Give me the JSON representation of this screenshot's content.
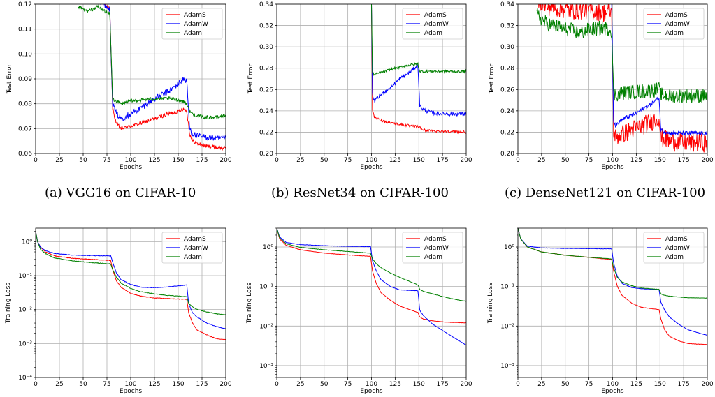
{
  "figure": {
    "captions": [
      "(a)  VGG16 on CIFAR-10",
      "(b)  ResNet34 on CIFAR-100",
      "(c)  DenseNet121 on CIFAR-100"
    ]
  },
  "chart_data": [
    {
      "id": "a-test",
      "type": "line",
      "title": "",
      "xlabel": "Epochs",
      "ylabel": "Test Error",
      "yscale": "linear",
      "xlim": [
        0,
        200
      ],
      "ylim": [
        0.06,
        0.12
      ],
      "xticks": [
        0,
        25,
        50,
        75,
        100,
        125,
        150,
        175,
        200
      ],
      "yticks": [
        0.06,
        0.07,
        0.08,
        0.09,
        0.1,
        0.11,
        0.12
      ],
      "yticklabels": [
        "0.06",
        "0.07",
        "0.08",
        "0.09",
        "0.10",
        "0.11",
        "0.12"
      ],
      "grid": true,
      "legend": "top-right",
      "series": [
        {
          "name": "AdamS",
          "color": "#ff0000",
          "x": [
            45,
            55,
            65,
            78,
            81,
            85,
            90,
            100,
            110,
            125,
            140,
            150,
            155,
            159,
            162,
            165,
            170,
            180,
            190,
            200
          ],
          "y": [
            0.125,
            0.124,
            0.122,
            0.118,
            0.078,
            0.072,
            0.07,
            0.071,
            0.072,
            0.074,
            0.076,
            0.077,
            0.078,
            0.077,
            0.068,
            0.065,
            0.064,
            0.063,
            0.0625,
            0.062
          ],
          "noise": 0.0008
        },
        {
          "name": "AdamW",
          "color": "#0000ff",
          "x": [
            45,
            55,
            65,
            78,
            81,
            85,
            90,
            100,
            110,
            125,
            140,
            150,
            155,
            159,
            162,
            165,
            170,
            180,
            190,
            200
          ],
          "y": [
            0.125,
            0.124,
            0.122,
            0.118,
            0.08,
            0.076,
            0.074,
            0.076,
            0.078,
            0.082,
            0.085,
            0.088,
            0.09,
            0.089,
            0.07,
            0.068,
            0.067,
            0.0665,
            0.066,
            0.066
          ],
          "noise": 0.0012
        },
        {
          "name": "Adam",
          "color": "#008000",
          "x": [
            45,
            55,
            65,
            78,
            81,
            85,
            90,
            100,
            110,
            125,
            140,
            150,
            155,
            159,
            162,
            165,
            170,
            180,
            190,
            200
          ],
          "y": [
            0.119,
            0.117,
            0.119,
            0.116,
            0.082,
            0.081,
            0.08,
            0.081,
            0.0815,
            0.082,
            0.082,
            0.0815,
            0.081,
            0.08,
            0.077,
            0.076,
            0.075,
            0.0745,
            0.0745,
            0.0755
          ],
          "noise": 0.0007
        }
      ]
    },
    {
      "id": "b-test",
      "type": "line",
      "title": "",
      "xlabel": "Epochs",
      "ylabel": "Test Error",
      "yscale": "linear",
      "xlim": [
        0,
        200
      ],
      "ylim": [
        0.2,
        0.34
      ],
      "xticks": [
        0,
        25,
        50,
        75,
        100,
        125,
        150,
        175,
        200
      ],
      "yticks": [
        0.2,
        0.22,
        0.24,
        0.26,
        0.28,
        0.3,
        0.32,
        0.34
      ],
      "yticklabels": [
        "0.20",
        "0.22",
        "0.24",
        "0.26",
        "0.28",
        "0.30",
        "0.32",
        "0.34"
      ],
      "grid": true,
      "legend": "top-right",
      "series": [
        {
          "name": "AdamS",
          "color": "#ff0000",
          "x": [
            100,
            101,
            103,
            110,
            125,
            140,
            150,
            155,
            165,
            180,
            200
          ],
          "y": [
            0.34,
            0.24,
            0.234,
            0.231,
            0.228,
            0.226,
            0.225,
            0.222,
            0.221,
            0.221,
            0.22
          ],
          "noise": 0.0012
        },
        {
          "name": "AdamW",
          "color": "#0000ff",
          "x": [
            100,
            101,
            103,
            110,
            120,
            130,
            140,
            149,
            151,
            155,
            165,
            180,
            200
          ],
          "y": [
            0.34,
            0.255,
            0.249,
            0.255,
            0.262,
            0.27,
            0.276,
            0.283,
            0.245,
            0.241,
            0.238,
            0.237,
            0.237
          ],
          "noise": 0.0018
        },
        {
          "name": "Adam",
          "color": "#008000",
          "x": [
            100,
            101,
            103,
            110,
            125,
            140,
            149,
            151,
            160,
            180,
            200
          ],
          "y": [
            0.34,
            0.276,
            0.274,
            0.276,
            0.28,
            0.283,
            0.284,
            0.277,
            0.277,
            0.277,
            0.277
          ],
          "noise": 0.0012
        }
      ]
    },
    {
      "id": "c-test",
      "type": "line",
      "title": "",
      "xlabel": "Epochs",
      "ylabel": "Test Error",
      "yscale": "linear",
      "xlim": [
        0,
        200
      ],
      "ylim": [
        0.2,
        0.34
      ],
      "xticks": [
        0,
        25,
        50,
        75,
        100,
        125,
        150,
        175,
        200
      ],
      "yticks": [
        0.2,
        0.22,
        0.24,
        0.26,
        0.28,
        0.3,
        0.32,
        0.34
      ],
      "yticklabels": [
        "0.20",
        "0.22",
        "0.24",
        "0.26",
        "0.28",
        "0.30",
        "0.32",
        "0.34"
      ],
      "grid": true,
      "legend": "top-right",
      "series": [
        {
          "name": "AdamS",
          "color": "#ff0000",
          "x": [
            20,
            30,
            45,
            60,
            75,
            90,
            99,
            101,
            103,
            110,
            125,
            140,
            149,
            151,
            160,
            180,
            200
          ],
          "y": [
            0.345,
            0.338,
            0.336,
            0.334,
            0.335,
            0.332,
            0.333,
            0.222,
            0.215,
            0.218,
            0.224,
            0.229,
            0.234,
            0.215,
            0.212,
            0.21,
            0.21
          ],
          "noise": 0.009
        },
        {
          "name": "AdamW",
          "color": "#0000ff",
          "x": [
            20,
            40,
            70,
            99,
            101,
            103,
            110,
            125,
            140,
            149,
            151,
            160,
            180,
            200
          ],
          "y": [
            0.345,
            0.345,
            0.345,
            0.345,
            0.23,
            0.226,
            0.232,
            0.238,
            0.246,
            0.252,
            0.222,
            0.219,
            0.219,
            0.219
          ],
          "noise": 0.002
        },
        {
          "name": "Adam",
          "color": "#008000",
          "x": [
            20,
            30,
            45,
            55,
            65,
            75,
            90,
            99,
            101,
            103,
            110,
            125,
            140,
            149,
            151,
            160,
            180,
            200
          ],
          "y": [
            0.33,
            0.322,
            0.318,
            0.316,
            0.313,
            0.316,
            0.318,
            0.316,
            0.255,
            0.255,
            0.257,
            0.258,
            0.259,
            0.26,
            0.255,
            0.254,
            0.254,
            0.254
          ],
          "noise": 0.007
        }
      ]
    },
    {
      "id": "a-train",
      "type": "line",
      "title": "",
      "xlabel": "Epochs",
      "ylabel": "Training Loss",
      "yscale": "log",
      "xlim": [
        0,
        200
      ],
      "ylim": [
        0.0001,
        2.5
      ],
      "xticks": [
        0,
        25,
        50,
        75,
        100,
        125,
        150,
        175,
        200
      ],
      "yticks": [
        0.0001,
        0.001,
        0.01,
        0.1,
        1
      ],
      "yticklabels": [
        "10⁻⁴",
        "10⁻³",
        "10⁻²",
        "10⁻¹",
        "10⁰"
      ],
      "grid": true,
      "legend": "top-right",
      "series": [
        {
          "name": "AdamS",
          "color": "#ff0000",
          "x": [
            0,
            2,
            5,
            10,
            20,
            40,
            60,
            79,
            81,
            85,
            90,
            100,
            110,
            125,
            140,
            159,
            161,
            165,
            170,
            180,
            190,
            200
          ],
          "y": [
            2.0,
            1.0,
            0.7,
            0.5,
            0.38,
            0.32,
            0.3,
            0.28,
            0.15,
            0.07,
            0.045,
            0.03,
            0.025,
            0.022,
            0.021,
            0.02,
            0.008,
            0.004,
            0.0025,
            0.0018,
            0.0014,
            0.0013
          ],
          "noise": 0.02
        },
        {
          "name": "AdamW",
          "color": "#0000ff",
          "x": [
            0,
            2,
            5,
            10,
            20,
            40,
            60,
            79,
            81,
            85,
            90,
            100,
            110,
            125,
            140,
            159,
            161,
            165,
            170,
            180,
            190,
            200
          ],
          "y": [
            2.0,
            1.0,
            0.7,
            0.55,
            0.45,
            0.4,
            0.39,
            0.38,
            0.25,
            0.12,
            0.075,
            0.055,
            0.046,
            0.044,
            0.047,
            0.053,
            0.015,
            0.008,
            0.006,
            0.004,
            0.0032,
            0.0027
          ],
          "noise": 0.02
        },
        {
          "name": "Adam",
          "color": "#008000",
          "x": [
            0,
            2,
            5,
            10,
            20,
            40,
            60,
            79,
            81,
            85,
            90,
            100,
            110,
            125,
            140,
            159,
            161,
            165,
            170,
            180,
            190,
            200
          ],
          "y": [
            2.0,
            1.0,
            0.6,
            0.45,
            0.33,
            0.27,
            0.24,
            0.22,
            0.15,
            0.09,
            0.06,
            0.042,
            0.034,
            0.029,
            0.026,
            0.024,
            0.015,
            0.012,
            0.01,
            0.0085,
            0.0075,
            0.007
          ],
          "noise": 0.02
        }
      ]
    },
    {
      "id": "b-train",
      "type": "line",
      "title": "",
      "xlabel": "Epochs",
      "ylabel": "Training Loss",
      "yscale": "log",
      "xlim": [
        0,
        200
      ],
      "ylim": [
        0.0005,
        3
      ],
      "xticks": [
        0,
        25,
        50,
        75,
        100,
        125,
        150,
        175,
        200
      ],
      "yticks": [
        0.001,
        0.01,
        0.1,
        1
      ],
      "yticklabels": [
        "10⁻³",
        "10⁻²",
        "10⁻¹",
        "10⁰"
      ],
      "grid": true,
      "legend": "top-right",
      "series": [
        {
          "name": "AdamS",
          "color": "#ff0000",
          "x": [
            0,
            3,
            10,
            25,
            50,
            75,
            99,
            101,
            105,
            110,
            120,
            130,
            149,
            151,
            155,
            165,
            180,
            200
          ],
          "y": [
            3.0,
            1.6,
            1.1,
            0.85,
            0.7,
            0.63,
            0.58,
            0.25,
            0.12,
            0.07,
            0.045,
            0.032,
            0.022,
            0.017,
            0.015,
            0.0135,
            0.0125,
            0.012
          ],
          "noise": 0.01
        },
        {
          "name": "AdamW",
          "color": "#0000ff",
          "x": [
            0,
            3,
            10,
            25,
            50,
            75,
            99,
            101,
            105,
            110,
            120,
            130,
            149,
            151,
            155,
            165,
            180,
            200
          ],
          "y": [
            3.0,
            1.8,
            1.3,
            1.15,
            1.08,
            1.04,
            1.02,
            0.45,
            0.25,
            0.15,
            0.1,
            0.082,
            0.078,
            0.025,
            0.018,
            0.011,
            0.0065,
            0.0033
          ],
          "noise": 0.01
        },
        {
          "name": "Adam",
          "color": "#008000",
          "x": [
            0,
            3,
            10,
            25,
            50,
            75,
            99,
            101,
            105,
            110,
            120,
            130,
            149,
            151,
            155,
            165,
            180,
            200
          ],
          "y": [
            3.0,
            1.7,
            1.2,
            0.98,
            0.85,
            0.77,
            0.7,
            0.5,
            0.38,
            0.3,
            0.22,
            0.17,
            0.11,
            0.085,
            0.075,
            0.065,
            0.052,
            0.042
          ],
          "noise": 0.01
        }
      ]
    },
    {
      "id": "c-train",
      "type": "line",
      "title": "",
      "xlabel": "Epochs",
      "ylabel": "Training Loss",
      "yscale": "log",
      "xlim": [
        0,
        200
      ],
      "ylim": [
        0.0005,
        3
      ],
      "xticks": [
        0,
        25,
        50,
        75,
        100,
        125,
        150,
        175,
        200
      ],
      "yticks": [
        0.001,
        0.01,
        0.1,
        1
      ],
      "yticklabels": [
        "10⁻³",
        "10⁻²",
        "10⁻¹",
        "10⁰"
      ],
      "grid": true,
      "legend": "top-right",
      "series": [
        {
          "name": "AdamS",
          "color": "#ff0000",
          "x": [
            0,
            3,
            10,
            25,
            50,
            75,
            99,
            101,
            105,
            110,
            120,
            130,
            149,
            151,
            155,
            160,
            170,
            180,
            200
          ],
          "y": [
            3.0,
            1.6,
            1.0,
            0.75,
            0.62,
            0.55,
            0.48,
            0.25,
            0.1,
            0.06,
            0.038,
            0.03,
            0.026,
            0.015,
            0.008,
            0.0055,
            0.0042,
            0.0036,
            0.0034
          ],
          "noise": 0.01
        },
        {
          "name": "AdamW",
          "color": "#0000ff",
          "x": [
            0,
            3,
            10,
            25,
            50,
            75,
            99,
            101,
            105,
            110,
            120,
            130,
            149,
            151,
            155,
            160,
            170,
            180,
            200
          ],
          "y": [
            3.0,
            1.6,
            1.05,
            0.95,
            0.92,
            0.91,
            0.9,
            0.4,
            0.18,
            0.12,
            0.095,
            0.088,
            0.084,
            0.04,
            0.025,
            0.017,
            0.011,
            0.008,
            0.0058
          ],
          "noise": 0.01
        },
        {
          "name": "Adam",
          "color": "#008000",
          "x": [
            0,
            3,
            10,
            25,
            50,
            75,
            99,
            101,
            105,
            110,
            120,
            130,
            149,
            151,
            155,
            160,
            170,
            180,
            200
          ],
          "y": [
            3.0,
            1.6,
            1.0,
            0.75,
            0.62,
            0.55,
            0.5,
            0.3,
            0.17,
            0.13,
            0.105,
            0.092,
            0.085,
            0.065,
            0.06,
            0.057,
            0.054,
            0.052,
            0.051
          ],
          "noise": 0.01
        }
      ]
    }
  ]
}
